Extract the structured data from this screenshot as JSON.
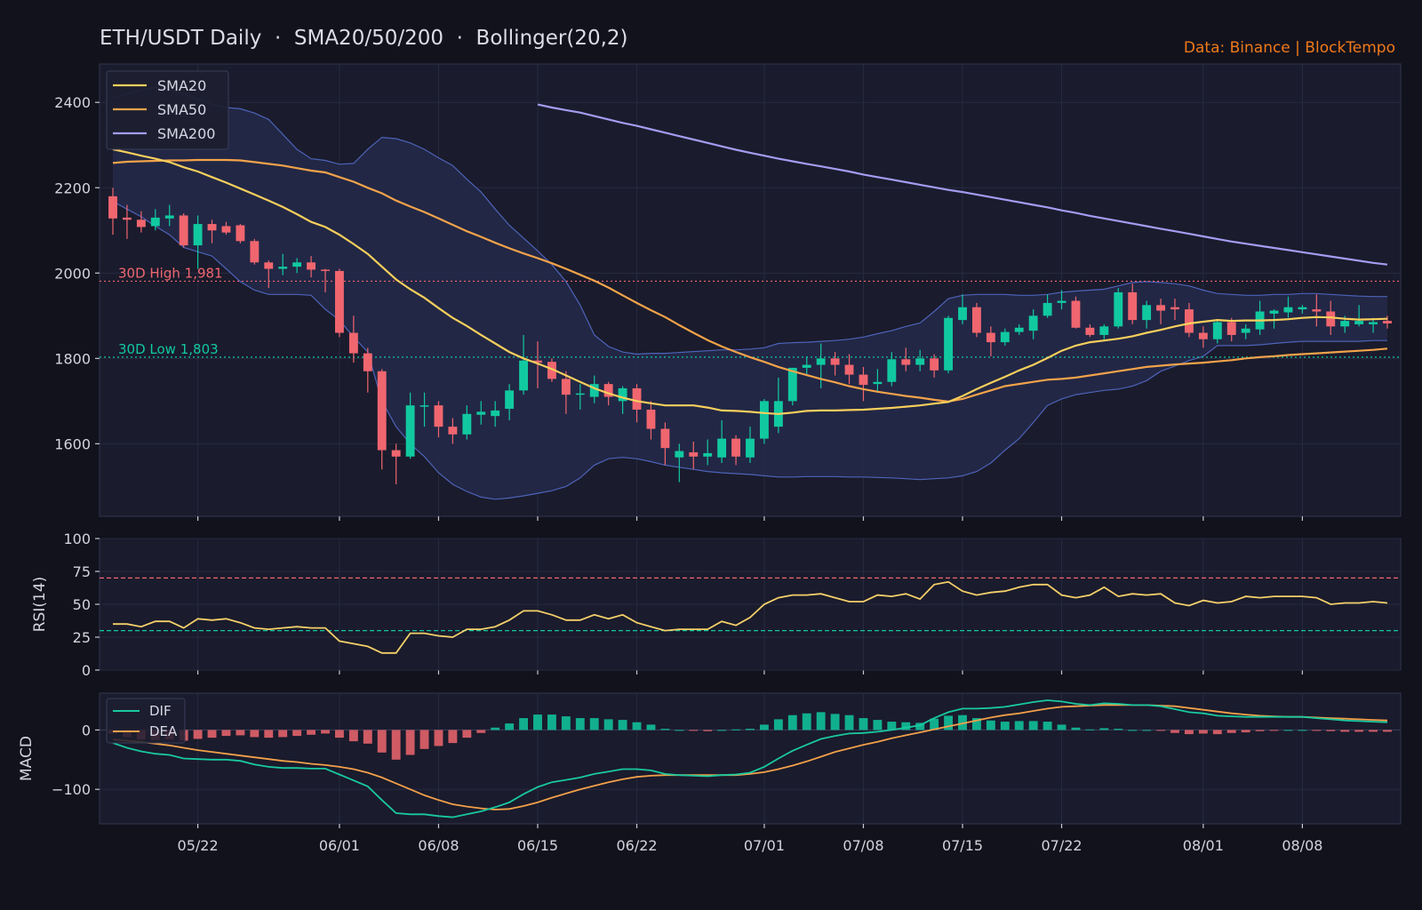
{
  "header": {
    "title": "ETH/USDT Daily  ·  SMA20/50/200  ·  Bollinger(20,2)",
    "source": "Data: Binance  |  BlockTempo"
  },
  "chart_data": {
    "type": "candlestick",
    "interval": "daily",
    "x_tick_labels": [
      "05/22",
      "06/01",
      "06/08",
      "06/15",
      "06/22",
      "07/01",
      "07/08",
      "07/15",
      "07/22",
      "08/01",
      "08/08"
    ],
    "x_tick_day_index": [
      6,
      16,
      23,
      30,
      37,
      46,
      53,
      60,
      67,
      77,
      84
    ],
    "colors": {
      "up": "#11c9a0",
      "down": "#f0666f",
      "sma20": "#f7cf5c",
      "sma50": "#f2a34a",
      "sma200": "#a49cf2",
      "band_line": "#4d63b8",
      "band_fill": "#25294a",
      "rsi": "#f5d06a",
      "dif": "#19c9a0",
      "dea": "#f2a04a"
    },
    "price_panel": {
      "ylim": [
        1430,
        2490
      ],
      "yticks": [
        1600,
        1800,
        2000,
        2200,
        2400
      ],
      "legend": {
        "position": "top-left",
        "items": [
          "SMA20",
          "SMA50",
          "SMA200"
        ]
      },
      "annotations": [
        {
          "label": "30D High 1,981",
          "value": 1981,
          "color": "#f0666f"
        },
        {
          "label": "30D Low 1,803",
          "value": 1803,
          "color": "#11c9a0"
        }
      ],
      "candles_ohlc": [
        [
          2180,
          2200,
          2090,
          2128
        ],
        [
          2130,
          2160,
          2080,
          2125
        ],
        [
          2125,
          2145,
          2095,
          2108
        ],
        [
          2110,
          2150,
          2100,
          2130
        ],
        [
          2128,
          2160,
          2110,
          2135
        ],
        [
          2135,
          2140,
          2060,
          2065
        ],
        [
          2065,
          2135,
          2010,
          2115
        ],
        [
          2115,
          2125,
          2070,
          2100
        ],
        [
          2110,
          2120,
          2090,
          2095
        ],
        [
          2112,
          2115,
          2070,
          2075
        ],
        [
          2075,
          2080,
          2020,
          2025
        ],
        [
          2025,
          2030,
          1965,
          2010
        ],
        [
          2010,
          2045,
          1995,
          2015
        ],
        [
          2015,
          2035,
          2000,
          2025
        ],
        [
          2025,
          2040,
          1990,
          2008
        ],
        [
          2008,
          2010,
          1955,
          2005
        ],
        [
          2005,
          2010,
          1850,
          1860
        ],
        [
          1860,
          1900,
          1790,
          1812
        ],
        [
          1812,
          1825,
          1720,
          1770
        ],
        [
          1770,
          1775,
          1540,
          1585
        ],
        [
          1585,
          1600,
          1505,
          1570
        ],
        [
          1570,
          1720,
          1565,
          1690
        ],
        [
          1690,
          1720,
          1640,
          1690
        ],
        [
          1690,
          1700,
          1615,
          1640
        ],
        [
          1640,
          1660,
          1600,
          1622
        ],
        [
          1622,
          1690,
          1610,
          1670
        ],
        [
          1668,
          1700,
          1645,
          1675
        ],
        [
          1665,
          1700,
          1640,
          1678
        ],
        [
          1682,
          1740,
          1655,
          1725
        ],
        [
          1725,
          1855,
          1715,
          1795
        ],
        [
          1795,
          1840,
          1730,
          1790
        ],
        [
          1792,
          1800,
          1745,
          1752
        ],
        [
          1752,
          1770,
          1670,
          1715
        ],
        [
          1715,
          1740,
          1680,
          1718
        ],
        [
          1710,
          1760,
          1695,
          1740
        ],
        [
          1740,
          1745,
          1690,
          1710
        ],
        [
          1700,
          1735,
          1670,
          1730
        ],
        [
          1730,
          1740,
          1650,
          1680
        ],
        [
          1680,
          1700,
          1610,
          1635
        ],
        [
          1635,
          1650,
          1550,
          1590
        ],
        [
          1568,
          1600,
          1510,
          1583
        ],
        [
          1580,
          1605,
          1540,
          1570
        ],
        [
          1570,
          1610,
          1550,
          1578
        ],
        [
          1568,
          1655,
          1555,
          1612
        ],
        [
          1612,
          1620,
          1550,
          1570
        ],
        [
          1568,
          1640,
          1555,
          1612
        ],
        [
          1612,
          1705,
          1600,
          1700
        ],
        [
          1640,
          1755,
          1625,
          1700
        ],
        [
          1700,
          1760,
          1690,
          1778
        ],
        [
          1778,
          1805,
          1760,
          1785
        ],
        [
          1785,
          1835,
          1730,
          1800
        ],
        [
          1800,
          1815,
          1760,
          1785
        ],
        [
          1785,
          1810,
          1740,
          1762
        ],
        [
          1762,
          1780,
          1700,
          1738
        ],
        [
          1740,
          1775,
          1720,
          1745
        ],
        [
          1745,
          1815,
          1735,
          1798
        ],
        [
          1798,
          1825,
          1770,
          1785
        ],
        [
          1785,
          1820,
          1770,
          1800
        ],
        [
          1800,
          1810,
          1755,
          1772
        ],
        [
          1772,
          1900,
          1765,
          1895
        ],
        [
          1890,
          1950,
          1880,
          1920
        ],
        [
          1920,
          1930,
          1850,
          1860
        ],
        [
          1860,
          1875,
          1805,
          1838
        ],
        [
          1838,
          1870,
          1830,
          1862
        ],
        [
          1862,
          1880,
          1855,
          1872
        ],
        [
          1865,
          1915,
          1845,
          1900
        ],
        [
          1900,
          1950,
          1895,
          1930
        ],
        [
          1930,
          1960,
          1915,
          1935
        ],
        [
          1935,
          1945,
          1870,
          1872
        ],
        [
          1872,
          1880,
          1850,
          1855
        ],
        [
          1855,
          1880,
          1845,
          1875
        ],
        [
          1875,
          1965,
          1870,
          1955
        ],
        [
          1955,
          1975,
          1880,
          1890
        ],
        [
          1890,
          1935,
          1870,
          1925
        ],
        [
          1925,
          1940,
          1880,
          1912
        ],
        [
          1920,
          1940,
          1890,
          1915
        ],
        [
          1915,
          1930,
          1850,
          1860
        ],
        [
          1860,
          1875,
          1825,
          1845
        ],
        [
          1845,
          1890,
          1835,
          1885
        ],
        [
          1885,
          1895,
          1840,
          1855
        ],
        [
          1860,
          1880,
          1845,
          1870
        ],
        [
          1868,
          1935,
          1855,
          1910
        ],
        [
          1905,
          1915,
          1870,
          1912
        ],
        [
          1908,
          1945,
          1895,
          1920
        ],
        [
          1915,
          1925,
          1905,
          1920
        ],
        [
          1915,
          1950,
          1875,
          1910
        ],
        [
          1910,
          1935,
          1855,
          1875
        ],
        [
          1875,
          1900,
          1860,
          1888
        ],
        [
          1880,
          1925,
          1875,
          1888
        ],
        [
          1880,
          1895,
          1860,
          1885
        ],
        [
          1888,
          1900,
          1870,
          1882
        ]
      ],
      "sma20": [
        2290,
        2283,
        2275,
        2268,
        2260,
        2248,
        2238,
        2225,
        2212,
        2198,
        2184,
        2170,
        2155,
        2138,
        2120,
        2108,
        2090,
        2068,
        2045,
        2015,
        1985,
        1962,
        1942,
        1918,
        1895,
        1876,
        1855,
        1835,
        1815,
        1800,
        1788,
        1775,
        1760,
        1745,
        1730,
        1718,
        1708,
        1700,
        1695,
        1690,
        1690,
        1690,
        1685,
        1678,
        1677,
        1675,
        1672,
        1670,
        1673,
        1677,
        1678,
        1678,
        1679,
        1680,
        1682,
        1684,
        1687,
        1690,
        1694,
        1698,
        1712,
        1728,
        1743,
        1757,
        1772,
        1785,
        1801,
        1818,
        1830,
        1838,
        1842,
        1846,
        1852,
        1860,
        1867,
        1875,
        1882,
        1886,
        1890,
        1888,
        1889,
        1889,
        1890,
        1892,
        1895,
        1897,
        1896,
        1893,
        1891,
        1892,
        1893
      ],
      "sma50": [
        2258,
        2261,
        2262,
        2263,
        2264,
        2264,
        2265,
        2265,
        2265,
        2264,
        2260,
        2256,
        2252,
        2246,
        2240,
        2236,
        2225,
        2214,
        2200,
        2187,
        2170,
        2156,
        2143,
        2128,
        2113,
        2098,
        2085,
        2071,
        2058,
        2046,
        2035,
        2023,
        2010,
        1996,
        1982,
        1966,
        1948,
        1930,
        1913,
        1897,
        1878,
        1860,
        1843,
        1828,
        1815,
        1803,
        1792,
        1780,
        1770,
        1761,
        1752,
        1744,
        1735,
        1728,
        1722,
        1717,
        1712,
        1708,
        1703,
        1699,
        1705,
        1715,
        1725,
        1735,
        1740,
        1745,
        1750,
        1752,
        1755,
        1760,
        1765,
        1770,
        1775,
        1780,
        1783,
        1786,
        1788,
        1790,
        1793,
        1796,
        1800,
        1803,
        1805,
        1808,
        1810,
        1812,
        1814,
        1816,
        1818,
        1820,
        1823
      ],
      "sma200": [
        null,
        null,
        null,
        null,
        null,
        null,
        null,
        null,
        null,
        null,
        null,
        null,
        null,
        null,
        null,
        null,
        null,
        null,
        null,
        null,
        null,
        null,
        null,
        null,
        null,
        null,
        null,
        null,
        null,
        null,
        2395,
        2388,
        2382,
        2376,
        2368,
        2360,
        2352,
        2345,
        2337,
        2329,
        2321,
        2313,
        2305,
        2297,
        2289,
        2282,
        2275,
        2268,
        2262,
        2256,
        2250,
        2244,
        2238,
        2231,
        2225,
        2219,
        2213,
        2207,
        2201,
        2195,
        2190,
        2184,
        2178,
        2172,
        2166,
        2160,
        2154,
        2147,
        2141,
        2134,
        2128,
        2122,
        2116,
        2110,
        2104,
        2098,
        2092,
        2086,
        2080,
        2074,
        2069,
        2064,
        2059,
        2054,
        2049,
        2044,
        2039,
        2034,
        2029,
        2024,
        2020
      ],
      "bollinger_upper": [
        2410,
        2420,
        2430,
        2435,
        2430,
        2420,
        2408,
        2395,
        2388,
        2385,
        2375,
        2360,
        2325,
        2290,
        2268,
        2264,
        2255,
        2257,
        2290,
        2318,
        2315,
        2305,
        2290,
        2270,
        2252,
        2220,
        2190,
        2150,
        2112,
        2082,
        2052,
        2020,
        1980,
        1925,
        1855,
        1828,
        1815,
        1810,
        1812,
        1812,
        1814,
        1816,
        1818,
        1820,
        1820,
        1822,
        1825,
        1835,
        1837,
        1838,
        1840,
        1842,
        1845,
        1850,
        1858,
        1865,
        1875,
        1883,
        1910,
        1940,
        1948,
        1950,
        1950,
        1950,
        1948,
        1948,
        1950,
        1955,
        1958,
        1960,
        1962,
        1970,
        1978,
        1980,
        1978,
        1975,
        1970,
        1960,
        1952,
        1950,
        1948,
        1948,
        1950,
        1950,
        1952,
        1952,
        1950,
        1948,
        1946,
        1945,
        1945
      ],
      "bollinger_lower": [
        2168,
        2150,
        2132,
        2110,
        2090,
        2060,
        2050,
        2040,
        2010,
        1980,
        1960,
        1950,
        1950,
        1950,
        1948,
        1915,
        1890,
        1850,
        1815,
        1700,
        1640,
        1600,
        1570,
        1532,
        1505,
        1488,
        1475,
        1470,
        1473,
        1478,
        1484,
        1490,
        1500,
        1520,
        1550,
        1565,
        1568,
        1565,
        1558,
        1550,
        1545,
        1540,
        1535,
        1532,
        1530,
        1528,
        1525,
        1522,
        1522,
        1523,
        1523,
        1523,
        1522,
        1522,
        1521,
        1520,
        1518,
        1516,
        1518,
        1520,
        1525,
        1535,
        1555,
        1585,
        1612,
        1650,
        1690,
        1705,
        1715,
        1720,
        1725,
        1728,
        1735,
        1748,
        1770,
        1782,
        1795,
        1805,
        1830,
        1830,
        1830,
        1832,
        1835,
        1838,
        1840,
        1840,
        1840,
        1840,
        1840,
        1842,
        1842
      ]
    },
    "rsi_panel": {
      "label": "RSI(14)",
      "ylim": [
        0,
        100
      ],
      "yticks": [
        0,
        25,
        50,
        75,
        100
      ],
      "overbought": 70,
      "oversold": 30,
      "values": [
        35,
        35,
        33,
        37,
        37,
        32,
        39,
        38,
        39,
        36,
        32,
        31,
        32,
        33,
        32,
        32,
        22,
        20,
        18,
        13,
        13,
        28,
        28,
        26,
        25,
        31,
        31,
        33,
        38,
        45,
        45,
        42,
        38,
        38,
        42,
        39,
        42,
        36,
        33,
        30,
        31,
        31,
        31,
        37,
        34,
        40,
        50,
        55,
        57,
        57,
        58,
        55,
        52,
        52,
        57,
        56,
        58,
        54,
        65,
        67,
        60,
        57,
        59,
        60,
        63,
        65,
        65,
        57,
        55,
        57,
        63,
        56,
        58,
        57,
        58,
        51,
        49,
        53,
        51,
        52,
        56,
        55,
        56,
        56,
        56,
        55,
        50,
        51,
        51,
        52,
        51
      ]
    },
    "macd_panel": {
      "label": "MACD",
      "ylim": [
        -158,
        62
      ],
      "yticks": [
        -100,
        0
      ],
      "legend": {
        "position": "top-left",
        "items": [
          "DIF",
          "DEA"
        ]
      },
      "dif": [
        -22,
        -30,
        -36,
        -40,
        -42,
        -48,
        -49,
        -50,
        -50,
        -52,
        -58,
        -62,
        -64,
        -64,
        -65,
        -65,
        -75,
        -85,
        -95,
        -118,
        -140,
        -142,
        -142,
        -145,
        -147,
        -142,
        -137,
        -130,
        -122,
        -108,
        -96,
        -88,
        -84,
        -80,
        -74,
        -70,
        -66,
        -66,
        -68,
        -74,
        -76,
        -77,
        -78,
        -76,
        -75,
        -72,
        -62,
        -48,
        -35,
        -25,
        -15,
        -10,
        -6,
        -5,
        -3,
        0,
        4,
        8,
        20,
        30,
        36,
        36,
        37,
        39,
        43,
        47,
        50,
        48,
        44,
        42,
        45,
        44,
        42,
        42,
        40,
        35,
        30,
        28,
        24,
        23,
        22,
        22,
        22,
        22,
        22,
        20,
        18,
        16,
        15,
        14,
        13
      ],
      "dea": [
        -16,
        -18,
        -20,
        -23,
        -26,
        -30,
        -34,
        -37,
        -40,
        -43,
        -46,
        -49,
        -52,
        -54,
        -57,
        -59,
        -62,
        -66,
        -72,
        -80,
        -90,
        -100,
        -110,
        -118,
        -125,
        -129,
        -132,
        -134,
        -133,
        -128,
        -122,
        -114,
        -107,
        -100,
        -94,
        -88,
        -83,
        -79,
        -77,
        -76,
        -76,
        -76,
        -76,
        -76,
        -76,
        -74,
        -71,
        -66,
        -60,
        -53,
        -45,
        -37,
        -31,
        -25,
        -20,
        -14,
        -9,
        -4,
        1,
        6,
        11,
        16,
        21,
        25,
        28,
        32,
        36,
        39,
        40,
        41,
        42,
        42,
        42,
        42,
        41,
        40,
        37,
        34,
        31,
        28,
        26,
        24,
        23,
        22,
        22,
        21,
        20,
        19,
        18,
        17,
        16
      ]
    }
  }
}
